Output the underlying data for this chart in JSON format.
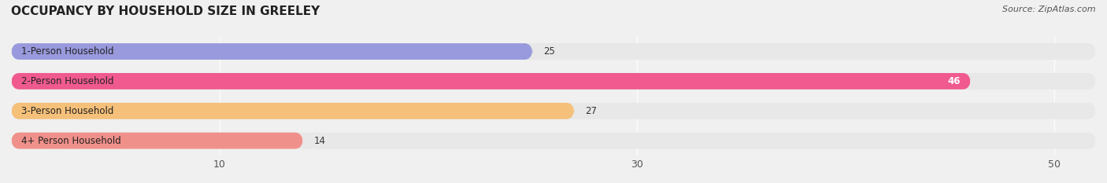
{
  "title": "OCCUPANCY BY HOUSEHOLD SIZE IN GREELEY",
  "source": "Source: ZipAtlas.com",
  "categories": [
    "1-Person Household",
    "2-Person Household",
    "3-Person Household",
    "4+ Person Household"
  ],
  "values": [
    25,
    46,
    27,
    14
  ],
  "bar_colors": [
    "#9999dd",
    "#f05a8e",
    "#f5c07a",
    "#f0908a"
  ],
  "bar_label_colors": [
    "#333333",
    "#ffffff",
    "#333333",
    "#333333"
  ],
  "background_color": "#f0f0f0",
  "bar_bg_color": "#e8e8e8",
  "xlim": [
    0,
    52
  ],
  "xticks": [
    10,
    30,
    50
  ],
  "bar_height": 0.55,
  "figsize": [
    14.06,
    2.33
  ],
  "dpi": 100
}
